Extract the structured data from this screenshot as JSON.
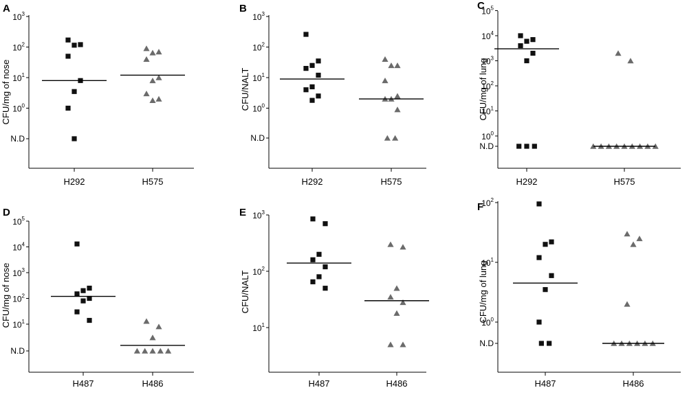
{
  "chart_data": [
    {
      "panel": "A",
      "type": "scatter",
      "ylabel": "CFU/mg of nose",
      "scale": "log",
      "nd_label": "N.D",
      "y_ticks": [
        {
          "b": "10",
          "e": "0"
        },
        {
          "b": "10",
          "e": "1"
        },
        {
          "b": "10",
          "e": "2"
        },
        {
          "b": "10",
          "e": "3"
        }
      ],
      "categories": [
        "H292",
        "H575"
      ],
      "series": [
        {
          "marker": "square",
          "values": [
            170,
            120,
            115,
            50,
            8,
            3.5,
            1,
            "N.D"
          ],
          "median": 8
        },
        {
          "marker": "triangle",
          "values": [
            90,
            70,
            65,
            40,
            10,
            8,
            3,
            2,
            1.8
          ],
          "median": 12
        }
      ]
    },
    {
      "panel": "B",
      "type": "scatter",
      "ylabel": "CFU/NALT",
      "scale": "log",
      "nd_label": "N.D",
      "y_ticks": [
        {
          "b": "10",
          "e": "0"
        },
        {
          "b": "10",
          "e": "1"
        },
        {
          "b": "10",
          "e": "2"
        },
        {
          "b": "10",
          "e": "3"
        }
      ],
      "categories": [
        "H292",
        "H575"
      ],
      "series": [
        {
          "marker": "square",
          "values": [
            260,
            35,
            25,
            20,
            12,
            5,
            4,
            2.5,
            1.8
          ],
          "median": 9
        },
        {
          "marker": "triangle",
          "values": [
            40,
            25,
            25,
            8,
            2.5,
            2,
            2,
            0.9,
            "N.D",
            "N.D"
          ],
          "median": 2
        }
      ]
    },
    {
      "panel": "C",
      "type": "scatter",
      "ylabel": "CFU/mg of lung",
      "scale": "log",
      "nd_label": "N.D",
      "y_ticks": [
        {
          "b": "10",
          "e": "0"
        },
        {
          "b": "10",
          "e": "1"
        },
        {
          "b": "10",
          "e": "2"
        },
        {
          "b": "10",
          "e": "3"
        },
        {
          "b": "10",
          "e": "4"
        },
        {
          "b": "10",
          "e": "5"
        }
      ],
      "categories": [
        "H292",
        "H575"
      ],
      "series": [
        {
          "marker": "square",
          "values": [
            10000,
            7000,
            6000,
            4000,
            2000,
            1000,
            "N.D",
            "N.D",
            "N.D"
          ],
          "median": 3000
        },
        {
          "marker": "triangle",
          "values": [
            2000,
            1000,
            "N.D",
            "N.D",
            "N.D",
            "N.D",
            "N.D",
            "N.D",
            "N.D",
            "N.D",
            "N.D"
          ],
          "median": "N.D"
        }
      ]
    },
    {
      "panel": "D",
      "type": "scatter",
      "ylabel": "CFU/mg of nose",
      "scale": "log",
      "nd_label": "N.D",
      "y_ticks": [
        {
          "b": "10",
          "e": "1"
        },
        {
          "b": "10",
          "e": "2"
        },
        {
          "b": "10",
          "e": "3"
        },
        {
          "b": "10",
          "e": "4"
        },
        {
          "b": "10",
          "e": "5"
        }
      ],
      "categories": [
        "H487",
        "H486"
      ],
      "series": [
        {
          "marker": "square",
          "values": [
            13000,
            250,
            200,
            150,
            100,
            80,
            30,
            14
          ],
          "median": 120
        },
        {
          "marker": "triangle",
          "values": [
            13,
            8,
            3,
            "N.D",
            "N.D",
            "N.D",
            "N.D",
            "N.D"
          ],
          "median": 1.5
        }
      ]
    },
    {
      "panel": "E",
      "type": "scatter",
      "ylabel": "CFU/NALT",
      "scale": "log",
      "nd_label": "",
      "y_ticks": [
        {
          "b": "10",
          "e": "1"
        },
        {
          "b": "10",
          "e": "2"
        },
        {
          "b": "10",
          "e": "3"
        }
      ],
      "categories": [
        "H487",
        "H486"
      ],
      "series": [
        {
          "marker": "square",
          "values": [
            850,
            700,
            200,
            160,
            120,
            80,
            65,
            50
          ],
          "median": 140
        },
        {
          "marker": "triangle",
          "values": [
            300,
            270,
            50,
            35,
            28,
            18,
            5,
            5
          ],
          "median": 30
        }
      ]
    },
    {
      "panel": "F",
      "type": "scatter",
      "ylabel": "CFU/mg of lung",
      "scale": "log",
      "nd_label": "N.D",
      "y_ticks": [
        {
          "b": "10",
          "e": "0"
        },
        {
          "b": "10",
          "e": "1"
        },
        {
          "b": "10",
          "e": "2"
        }
      ],
      "categories": [
        "H487",
        "H486"
      ],
      "series": [
        {
          "marker": "square",
          "values": [
            95,
            22,
            20,
            12,
            6,
            3.5,
            1,
            "N.D",
            "N.D"
          ],
          "median": 4.5
        },
        {
          "marker": "triangle",
          "values": [
            30,
            25,
            20,
            2,
            "N.D",
            "N.D",
            "N.D",
            "N.D",
            "N.D",
            "N.D"
          ],
          "median": "N.D"
        }
      ]
    }
  ]
}
